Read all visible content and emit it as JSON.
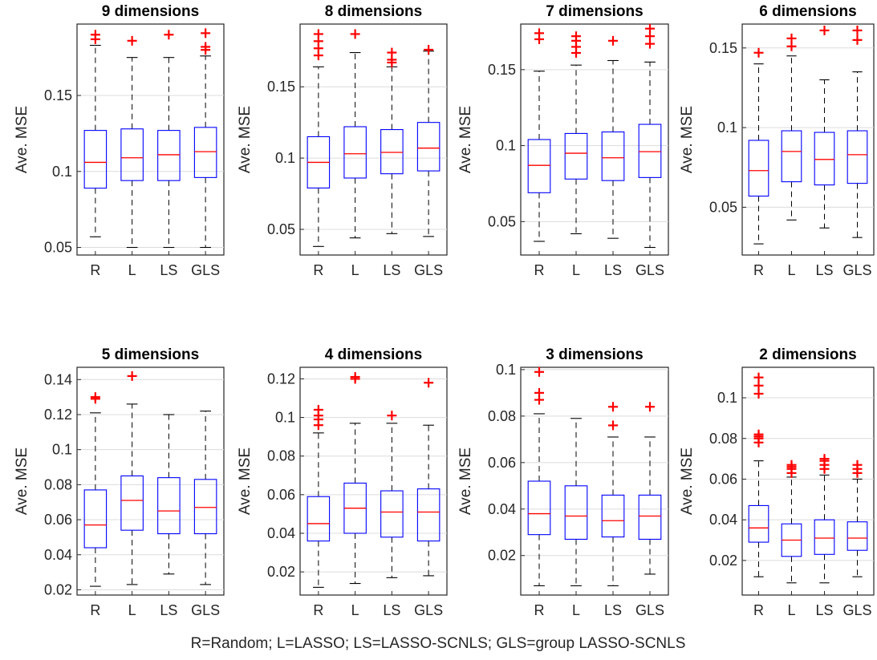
{
  "caption": "R=Random;  L=LASSO;  LS=LASSO-SCNLS;  GLS=group LASSO-SCNLS",
  "colors": {
    "box": "#0000ff",
    "median": "#ff0000",
    "outlier": "#ff0000",
    "whisker": "#000000",
    "grid": "#dcdcdc"
  },
  "chart_data": [
    {
      "type": "box",
      "title": "9 dimensions",
      "ylabel": "Ave. MSE",
      "categories": [
        "R",
        "L",
        "LS",
        "GLS"
      ],
      "ylim": [
        0.045,
        0.197
      ],
      "yticks": [
        0.05,
        0.1,
        0.15
      ],
      "ytick_labels": [
        "0.05",
        "0.1",
        "0.15"
      ],
      "grid": true,
      "boxes": [
        {
          "min": 0.057,
          "q1": 0.089,
          "median": 0.106,
          "q3": 0.127,
          "max": 0.183,
          "outliers": [
            0.187,
            0.19
          ]
        },
        {
          "min": 0.05,
          "q1": 0.094,
          "median": 0.109,
          "q3": 0.128,
          "max": 0.175,
          "outliers": [
            0.186
          ]
        },
        {
          "min": 0.05,
          "q1": 0.094,
          "median": 0.111,
          "q3": 0.127,
          "max": 0.175,
          "outliers": [
            0.19
          ]
        },
        {
          "min": 0.05,
          "q1": 0.096,
          "median": 0.113,
          "q3": 0.129,
          "max": 0.176,
          "outliers": [
            0.18,
            0.182,
            0.191
          ]
        }
      ]
    },
    {
      "type": "box",
      "title": "8 dimensions",
      "ylabel": "Ave. MSE",
      "categories": [
        "R",
        "L",
        "LS",
        "GLS"
      ],
      "ylim": [
        0.032,
        0.194
      ],
      "yticks": [
        0.05,
        0.1,
        0.15
      ],
      "ytick_labels": [
        "0.05",
        "0.1",
        "0.15"
      ],
      "grid": true,
      "boxes": [
        {
          "min": 0.038,
          "q1": 0.079,
          "median": 0.097,
          "q3": 0.115,
          "max": 0.164,
          "outliers": [
            0.172,
            0.177,
            0.182,
            0.187
          ]
        },
        {
          "min": 0.044,
          "q1": 0.086,
          "median": 0.103,
          "q3": 0.122,
          "max": 0.174,
          "outliers": [
            0.187
          ]
        },
        {
          "min": 0.047,
          "q1": 0.089,
          "median": 0.104,
          "q3": 0.12,
          "max": 0.164,
          "outliers": [
            0.167,
            0.169,
            0.174
          ]
        },
        {
          "min": 0.045,
          "q1": 0.091,
          "median": 0.107,
          "q3": 0.125,
          "max": 0.175,
          "outliers": [
            0.176
          ]
        }
      ]
    },
    {
      "type": "box",
      "title": "7 dimensions",
      "ylabel": "Ave. MSE",
      "categories": [
        "R",
        "L",
        "LS",
        "GLS"
      ],
      "ylim": [
        0.028,
        0.18
      ],
      "yticks": [
        0.05,
        0.1,
        0.15
      ],
      "ytick_labels": [
        "0.05",
        "0.1",
        "0.15"
      ],
      "grid": true,
      "boxes": [
        {
          "min": 0.037,
          "q1": 0.069,
          "median": 0.087,
          "q3": 0.104,
          "max": 0.149,
          "outliers": [
            0.17,
            0.174
          ]
        },
        {
          "min": 0.042,
          "q1": 0.078,
          "median": 0.095,
          "q3": 0.108,
          "max": 0.153,
          "outliers": [
            0.161,
            0.165,
            0.169,
            0.172
          ]
        },
        {
          "min": 0.039,
          "q1": 0.077,
          "median": 0.092,
          "q3": 0.109,
          "max": 0.156,
          "outliers": [
            0.169
          ]
        },
        {
          "min": 0.033,
          "q1": 0.079,
          "median": 0.096,
          "q3": 0.114,
          "max": 0.155,
          "outliers": [
            0.167,
            0.172,
            0.177
          ]
        }
      ]
    },
    {
      "type": "box",
      "title": "6 dimensions",
      "ylabel": "Ave. MSE",
      "categories": [
        "R",
        "L",
        "LS",
        "GLS"
      ],
      "ylim": [
        0.02,
        0.165
      ],
      "yticks": [
        0.05,
        0.1,
        0.15
      ],
      "ytick_labels": [
        "0.05",
        "0.1",
        "0.15"
      ],
      "grid": true,
      "boxes": [
        {
          "min": 0.027,
          "q1": 0.057,
          "median": 0.073,
          "q3": 0.092,
          "max": 0.14,
          "outliers": [
            0.147
          ]
        },
        {
          "min": 0.042,
          "q1": 0.066,
          "median": 0.085,
          "q3": 0.098,
          "max": 0.145,
          "outliers": [
            0.151,
            0.156
          ]
        },
        {
          "min": 0.037,
          "q1": 0.064,
          "median": 0.08,
          "q3": 0.097,
          "max": 0.13,
          "outliers": [
            0.161
          ]
        },
        {
          "min": 0.031,
          "q1": 0.065,
          "median": 0.083,
          "q3": 0.098,
          "max": 0.135,
          "outliers": [
            0.155,
            0.161
          ]
        }
      ]
    },
    {
      "type": "box",
      "title": "5 dimensions",
      "ylabel": "Ave. MSE",
      "categories": [
        "R",
        "L",
        "LS",
        "GLS"
      ],
      "ylim": [
        0.017,
        0.147
      ],
      "yticks": [
        0.02,
        0.04,
        0.06,
        0.08,
        0.1,
        0.12,
        0.14
      ],
      "ytick_labels": [
        "0.02",
        "0.04",
        "0.06",
        "0.08",
        "0.1",
        "0.12",
        "0.14"
      ],
      "grid": true,
      "boxes": [
        {
          "min": 0.022,
          "q1": 0.044,
          "median": 0.057,
          "q3": 0.077,
          "max": 0.121,
          "outliers": [
            0.129,
            0.13
          ]
        },
        {
          "min": 0.023,
          "q1": 0.054,
          "median": 0.071,
          "q3": 0.085,
          "max": 0.126,
          "outliers": [
            0.142
          ]
        },
        {
          "min": 0.029,
          "q1": 0.052,
          "median": 0.065,
          "q3": 0.084,
          "max": 0.12,
          "outliers": []
        },
        {
          "min": 0.023,
          "q1": 0.052,
          "median": 0.067,
          "q3": 0.083,
          "max": 0.122,
          "outliers": []
        }
      ]
    },
    {
      "type": "box",
      "title": "4 dimensions",
      "ylabel": "Ave. MSE",
      "categories": [
        "R",
        "L",
        "LS",
        "GLS"
      ],
      "ylim": [
        0.008,
        0.126
      ],
      "yticks": [
        0.02,
        0.04,
        0.06,
        0.08,
        0.1,
        0.12
      ],
      "ytick_labels": [
        "0.02",
        "0.04",
        "0.06",
        "0.08",
        "0.1",
        "0.12"
      ],
      "grid": true,
      "boxes": [
        {
          "min": 0.012,
          "q1": 0.036,
          "median": 0.045,
          "q3": 0.059,
          "max": 0.092,
          "outliers": [
            0.096,
            0.099,
            0.101,
            0.104
          ]
        },
        {
          "min": 0.014,
          "q1": 0.04,
          "median": 0.053,
          "q3": 0.066,
          "max": 0.097,
          "outliers": [
            0.12,
            0.121
          ]
        },
        {
          "min": 0.017,
          "q1": 0.038,
          "median": 0.051,
          "q3": 0.062,
          "max": 0.097,
          "outliers": [
            0.101
          ]
        },
        {
          "min": 0.018,
          "q1": 0.036,
          "median": 0.051,
          "q3": 0.063,
          "max": 0.096,
          "outliers": [
            0.118
          ]
        }
      ]
    },
    {
      "type": "box",
      "title": "3 dimensions",
      "ylabel": "Ave. MSE",
      "categories": [
        "R",
        "L",
        "LS",
        "GLS"
      ],
      "ylim": [
        0.003,
        0.101
      ],
      "yticks": [
        0.02,
        0.04,
        0.06,
        0.08,
        0.1
      ],
      "ytick_labels": [
        "0.02",
        "0.04",
        "0.06",
        "0.08",
        "0.1"
      ],
      "grid": true,
      "boxes": [
        {
          "min": 0.007,
          "q1": 0.029,
          "median": 0.038,
          "q3": 0.052,
          "max": 0.081,
          "outliers": [
            0.087,
            0.09,
            0.099
          ]
        },
        {
          "min": 0.007,
          "q1": 0.027,
          "median": 0.037,
          "q3": 0.05,
          "max": 0.079,
          "outliers": []
        },
        {
          "min": 0.007,
          "q1": 0.028,
          "median": 0.035,
          "q3": 0.046,
          "max": 0.071,
          "outliers": [
            0.076,
            0.084
          ]
        },
        {
          "min": 0.012,
          "q1": 0.027,
          "median": 0.037,
          "q3": 0.046,
          "max": 0.071,
          "outliers": [
            0.084
          ]
        }
      ]
    },
    {
      "type": "box",
      "title": "2 dimensions",
      "ylabel": "Ave. MSE",
      "categories": [
        "R",
        "L",
        "LS",
        "GLS"
      ],
      "ylim": [
        0.003,
        0.115
      ],
      "yticks": [
        0.02,
        0.04,
        0.06,
        0.08,
        0.1
      ],
      "ytick_labels": [
        "0.02",
        "0.04",
        "0.06",
        "0.08",
        "0.1"
      ],
      "grid": true,
      "boxes": [
        {
          "min": 0.012,
          "q1": 0.029,
          "median": 0.036,
          "q3": 0.047,
          "max": 0.069,
          "outliers": [
            0.078,
            0.08,
            0.081,
            0.082,
            0.102,
            0.106,
            0.11
          ]
        },
        {
          "min": 0.009,
          "q1": 0.022,
          "median": 0.03,
          "q3": 0.038,
          "max": 0.061,
          "outliers": [
            0.063,
            0.065,
            0.066,
            0.067
          ]
        },
        {
          "min": 0.009,
          "q1": 0.023,
          "median": 0.031,
          "q3": 0.04,
          "max": 0.062,
          "outliers": [
            0.065,
            0.067,
            0.069,
            0.07
          ]
        },
        {
          "min": 0.012,
          "q1": 0.025,
          "median": 0.031,
          "q3": 0.039,
          "max": 0.06,
          "outliers": [
            0.063,
            0.065,
            0.067
          ]
        }
      ]
    }
  ]
}
